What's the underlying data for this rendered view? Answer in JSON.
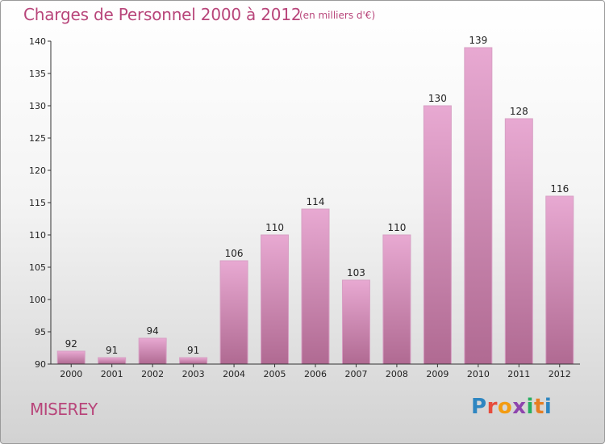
{
  "header": {
    "title": "Charges de Personnel 2000 à 2012",
    "subtitle": "(en milliers d'€)"
  },
  "footer": {
    "place": "MISEREY",
    "logo": {
      "letters": [
        "P",
        "r",
        "o",
        "x",
        "i",
        "t",
        "i"
      ],
      "colors": [
        "#2e86c1",
        "#e74c3c",
        "#f39c12",
        "#8e44ad",
        "#27ae60",
        "#e67e22",
        "#2e86c1"
      ]
    }
  },
  "chart_data": {
    "type": "bar",
    "title": "Charges de Personnel 2000 à 2012",
    "subtitle": "(en milliers d'€)",
    "categories": [
      "2000",
      "2001",
      "2002",
      "2003",
      "2004",
      "2005",
      "2006",
      "2007",
      "2008",
      "2009",
      "2010",
      "2011",
      "2012"
    ],
    "values": [
      92,
      91,
      94,
      91,
      106,
      110,
      114,
      103,
      110,
      130,
      139,
      128,
      116
    ],
    "value_labels": [
      "92",
      "91",
      "94",
      "91",
      "106",
      "110",
      "114",
      "103",
      "110",
      "130",
      "139",
      "128",
      "116"
    ],
    "ylim": [
      90,
      140
    ],
    "yticks": [
      90,
      95,
      100,
      105,
      110,
      115,
      120,
      125,
      130,
      135,
      140
    ],
    "ytick_labels": [
      "90",
      "95",
      "100",
      "105",
      "110",
      "115",
      "120",
      "125",
      "130",
      "135",
      "140"
    ],
    "xlabel": "",
    "ylabel": "",
    "grid": false,
    "legend": "none",
    "bar_color_top": "#e8a9d2",
    "bar_color_bottom": "#b06a92"
  }
}
